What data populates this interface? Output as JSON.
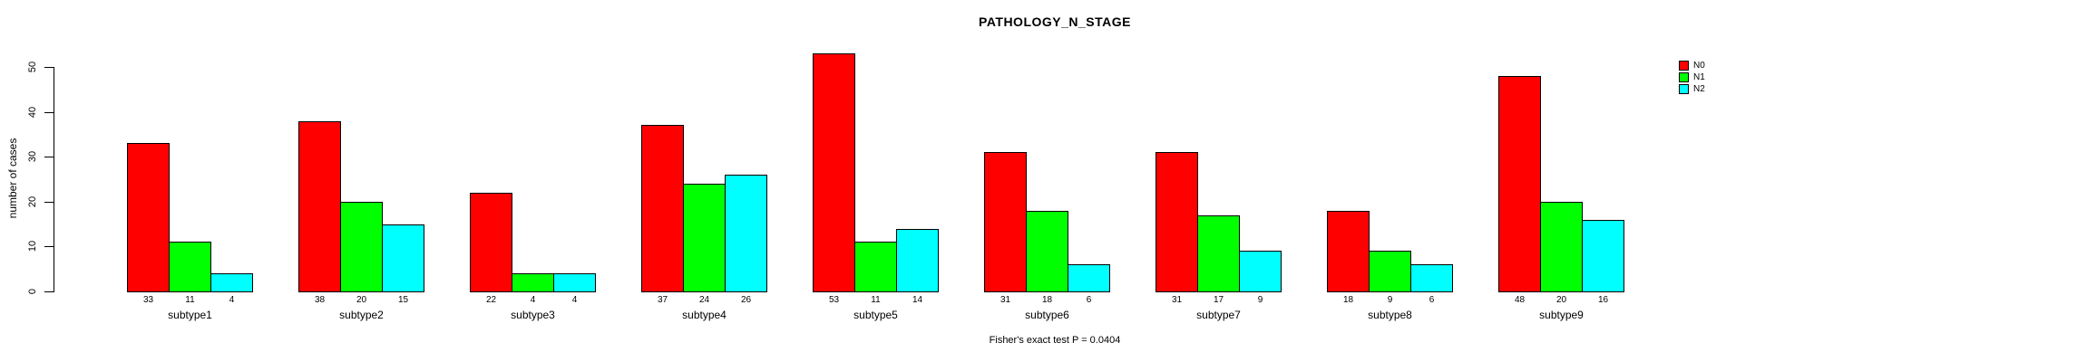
{
  "chart_data": {
    "type": "bar",
    "grouped": true,
    "title": "PATHOLOGY_N_STAGE",
    "xlabel": "",
    "ylabel": "number of cases",
    "annotation": "Fisher's exact test P = 0.0404",
    "categories": [
      "subtype1",
      "subtype2",
      "subtype3",
      "subtype4",
      "subtype5",
      "subtype6",
      "subtype7",
      "subtype8",
      "subtype9"
    ],
    "series": [
      {
        "name": "N0",
        "color": "#FF0000",
        "values": [
          33,
          38,
          22,
          37,
          53,
          31,
          31,
          18,
          48
        ]
      },
      {
        "name": "N1",
        "color": "#00FF00",
        "values": [
          11,
          20,
          4,
          24,
          11,
          18,
          17,
          9,
          20
        ]
      },
      {
        "name": "N2",
        "color": "#00FFFF",
        "values": [
          4,
          15,
          4,
          26,
          14,
          6,
          9,
          6,
          16
        ]
      }
    ],
    "bar_value_labels": [
      [
        33,
        11,
        4
      ],
      [
        38,
        20,
        15
      ],
      [
        22,
        4,
        4
      ],
      [
        37,
        24,
        26
      ],
      [
        53,
        11,
        14
      ],
      [
        31,
        18,
        6
      ],
      [
        31,
        17,
        9
      ],
      [
        18,
        9,
        6
      ],
      [
        48,
        20,
        16
      ]
    ],
    "ylim": [
      0,
      50
    ],
    "yticks": [
      0,
      10,
      20,
      30,
      40,
      50
    ],
    "grid": false,
    "legend_position": "right",
    "legend_entries": [
      "N0",
      "N1",
      "N2"
    ],
    "background_color": "#FFFFFF",
    "bar_border_color": "#000000"
  }
}
